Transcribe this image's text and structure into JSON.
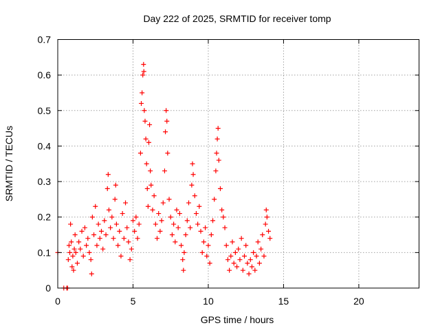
{
  "chart_data": {
    "type": "scatter",
    "title": "Day 222 of 2025, SRMTID for receiver tomp",
    "xlabel": "GPS time / hours",
    "ylabel": "SRMTID / TECUs",
    "xlim": [
      0,
      24
    ],
    "ylim": [
      0,
      0.7
    ],
    "xticks": [
      0,
      5,
      10,
      15,
      20
    ],
    "xtick_labels": [
      "0",
      "5",
      "10",
      "15",
      "20"
    ],
    "yticks": [
      0,
      0.1,
      0.2,
      0.3,
      0.4,
      0.5,
      0.6,
      0.7
    ],
    "ytick_labels": [
      "0",
      "0.1",
      "0.2",
      "0.3",
      "0.4",
      "0.5",
      "0.6",
      "0.7"
    ],
    "grid": true,
    "marker": "+",
    "color": "#ff0000",
    "series": [
      {
        "name": "SRMTID",
        "points": [
          [
            0.0,
            0.1
          ],
          [
            0.4,
            0.0
          ],
          [
            0.6,
            0.0
          ],
          [
            0.65,
            0.0
          ],
          [
            0.7,
            0.08
          ],
          [
            0.75,
            0.12
          ],
          [
            0.8,
            0.1
          ],
          [
            0.85,
            0.18
          ],
          [
            0.9,
            0.13
          ],
          [
            0.95,
            0.06
          ],
          [
            1.0,
            0.09
          ],
          [
            1.05,
            0.05
          ],
          [
            1.1,
            0.11
          ],
          [
            1.15,
            0.15
          ],
          [
            1.2,
            0.1
          ],
          [
            1.3,
            0.07
          ],
          [
            1.4,
            0.13
          ],
          [
            1.5,
            0.11
          ],
          [
            1.6,
            0.16
          ],
          [
            1.7,
            0.09
          ],
          [
            1.8,
            0.17
          ],
          [
            1.9,
            0.12
          ],
          [
            2.0,
            0.14
          ],
          [
            2.1,
            0.1
          ],
          [
            2.2,
            0.08
          ],
          [
            2.25,
            0.04
          ],
          [
            2.3,
            0.2
          ],
          [
            2.4,
            0.15
          ],
          [
            2.5,
            0.23
          ],
          [
            2.6,
            0.12
          ],
          [
            2.7,
            0.18
          ],
          [
            2.8,
            0.14
          ],
          [
            2.9,
            0.16
          ],
          [
            3.0,
            0.11
          ],
          [
            3.1,
            0.19
          ],
          [
            3.2,
            0.15
          ],
          [
            3.3,
            0.28
          ],
          [
            3.35,
            0.32
          ],
          [
            3.4,
            0.22
          ],
          [
            3.5,
            0.17
          ],
          [
            3.6,
            0.2
          ],
          [
            3.7,
            0.14
          ],
          [
            3.8,
            0.25
          ],
          [
            3.85,
            0.29
          ],
          [
            3.9,
            0.18
          ],
          [
            4.0,
            0.12
          ],
          [
            4.1,
            0.16
          ],
          [
            4.2,
            0.09
          ],
          [
            4.3,
            0.21
          ],
          [
            4.4,
            0.14
          ],
          [
            4.5,
            0.24
          ],
          [
            4.6,
            0.17
          ],
          [
            4.7,
            0.13
          ],
          [
            4.8,
            0.08
          ],
          [
            4.9,
            0.11
          ],
          [
            5.0,
            0.19
          ],
          [
            5.1,
            0.16
          ],
          [
            5.2,
            0.2
          ],
          [
            5.3,
            0.14
          ],
          [
            5.4,
            0.18
          ],
          [
            5.5,
            0.38
          ],
          [
            5.55,
            0.52
          ],
          [
            5.6,
            0.55
          ],
          [
            5.65,
            0.6
          ],
          [
            5.7,
            0.63
          ],
          [
            5.72,
            0.61
          ],
          [
            5.75,
            0.5
          ],
          [
            5.8,
            0.47
          ],
          [
            5.85,
            0.42
          ],
          [
            5.9,
            0.35
          ],
          [
            5.95,
            0.28
          ],
          [
            6.0,
            0.23
          ],
          [
            6.05,
            0.41
          ],
          [
            6.1,
            0.46
          ],
          [
            6.15,
            0.33
          ],
          [
            6.2,
            0.29
          ],
          [
            6.3,
            0.22
          ],
          [
            6.4,
            0.26
          ],
          [
            6.5,
            0.18
          ],
          [
            6.6,
            0.14
          ],
          [
            6.7,
            0.21
          ],
          [
            6.8,
            0.16
          ],
          [
            6.9,
            0.19
          ],
          [
            7.0,
            0.24
          ],
          [
            7.1,
            0.33
          ],
          [
            7.15,
            0.44
          ],
          [
            7.2,
            0.5
          ],
          [
            7.25,
            0.47
          ],
          [
            7.3,
            0.38
          ],
          [
            7.4,
            0.25
          ],
          [
            7.5,
            0.2
          ],
          [
            7.6,
            0.15
          ],
          [
            7.7,
            0.18
          ],
          [
            7.8,
            0.13
          ],
          [
            7.9,
            0.22
          ],
          [
            8.0,
            0.17
          ],
          [
            8.1,
            0.21
          ],
          [
            8.2,
            0.12
          ],
          [
            8.3,
            0.08
          ],
          [
            8.35,
            0.05
          ],
          [
            8.4,
            0.1
          ],
          [
            8.5,
            0.15
          ],
          [
            8.6,
            0.19
          ],
          [
            8.7,
            0.24
          ],
          [
            8.8,
            0.17
          ],
          [
            8.9,
            0.29
          ],
          [
            8.95,
            0.35
          ],
          [
            9.0,
            0.32
          ],
          [
            9.1,
            0.26
          ],
          [
            9.2,
            0.21
          ],
          [
            9.3,
            0.18
          ],
          [
            9.4,
            0.23
          ],
          [
            9.5,
            0.16
          ],
          [
            9.6,
            0.1
          ],
          [
            9.7,
            0.13
          ],
          [
            9.8,
            0.17
          ],
          [
            9.9,
            0.09
          ],
          [
            10.0,
            0.12
          ],
          [
            10.1,
            0.07
          ],
          [
            10.2,
            0.15
          ],
          [
            10.3,
            0.19
          ],
          [
            10.4,
            0.25
          ],
          [
            10.5,
            0.33
          ],
          [
            10.55,
            0.38
          ],
          [
            10.6,
            0.42
          ],
          [
            10.65,
            0.45
          ],
          [
            10.7,
            0.36
          ],
          [
            10.8,
            0.28
          ],
          [
            10.9,
            0.22
          ],
          [
            11.0,
            0.2
          ],
          [
            11.1,
            0.17
          ],
          [
            11.2,
            0.12
          ],
          [
            11.3,
            0.08
          ],
          [
            11.4,
            0.05
          ],
          [
            11.5,
            0.09
          ],
          [
            11.6,
            0.13
          ],
          [
            11.7,
            0.07
          ],
          [
            11.8,
            0.1
          ],
          [
            11.9,
            0.06
          ],
          [
            12.0,
            0.11
          ],
          [
            12.1,
            0.08
          ],
          [
            12.2,
            0.14
          ],
          [
            12.3,
            0.05
          ],
          [
            12.4,
            0.09
          ],
          [
            12.5,
            0.12
          ],
          [
            12.6,
            0.07
          ],
          [
            12.7,
            0.04
          ],
          [
            12.8,
            0.08
          ],
          [
            12.9,
            0.06
          ],
          [
            13.0,
            0.1
          ],
          [
            13.1,
            0.05
          ],
          [
            13.2,
            0.09
          ],
          [
            13.3,
            0.13
          ],
          [
            13.4,
            0.07
          ],
          [
            13.5,
            0.11
          ],
          [
            13.6,
            0.15
          ],
          [
            13.7,
            0.09
          ],
          [
            13.8,
            0.18
          ],
          [
            13.85,
            0.22
          ],
          [
            13.9,
            0.2
          ],
          [
            14.0,
            0.16
          ],
          [
            14.1,
            0.14
          ]
        ]
      }
    ]
  }
}
